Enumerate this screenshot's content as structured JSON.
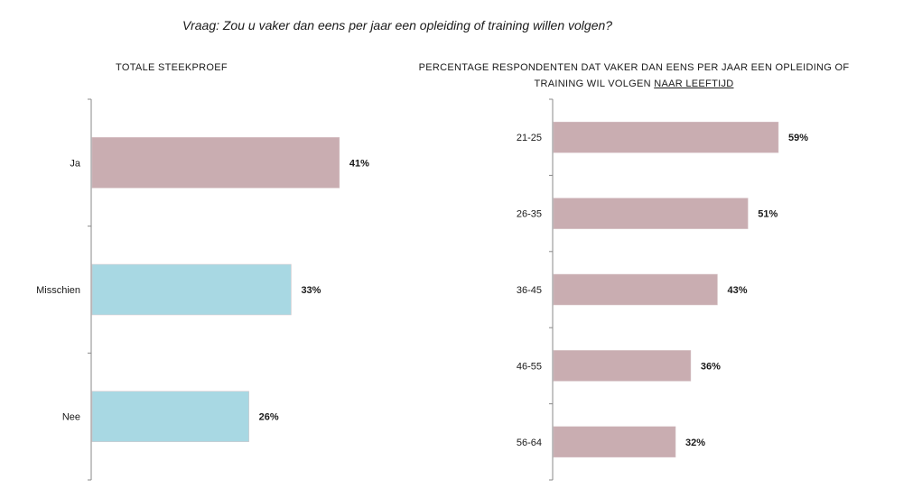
{
  "question": "Vraag: Zou u vaker dan eens per jaar een opleiding of training willen volgen?",
  "colors": {
    "pink": "#c9adb1",
    "blue": "#a8d8e3",
    "axis": "#888888"
  },
  "chart_data": [
    {
      "type": "bar",
      "orientation": "horizontal",
      "title": "TOTALE STEEKPROEF",
      "categories": [
        "Ja",
        "Misschien",
        "Nee"
      ],
      "values": [
        41,
        33,
        26
      ],
      "value_labels": [
        "41%",
        "33%",
        "26%"
      ],
      "bar_colors": [
        "#c9adb1",
        "#a8d8e3",
        "#a8d8e3"
      ],
      "unit": "%"
    },
    {
      "type": "bar",
      "orientation": "horizontal",
      "title_part1": "PERCENTAGE RESPONDENTEN DAT VAKER DAN EENS PER JAAR EEN OPLEIDING OF TRAINING WIL VOLGEN",
      "title_part2": "NAAR LEEFTIJD",
      "categories": [
        "21-25",
        "26-35",
        "36-45",
        "46-55",
        "56-64"
      ],
      "values": [
        59,
        51,
        43,
        36,
        32
      ],
      "value_labels": [
        "59%",
        "51%",
        "43%",
        "36%",
        "32%"
      ],
      "bar_colors": [
        "#c9adb1",
        "#c9adb1",
        "#c9adb1",
        "#c9adb1",
        "#c9adb1"
      ],
      "unit": "%"
    }
  ]
}
